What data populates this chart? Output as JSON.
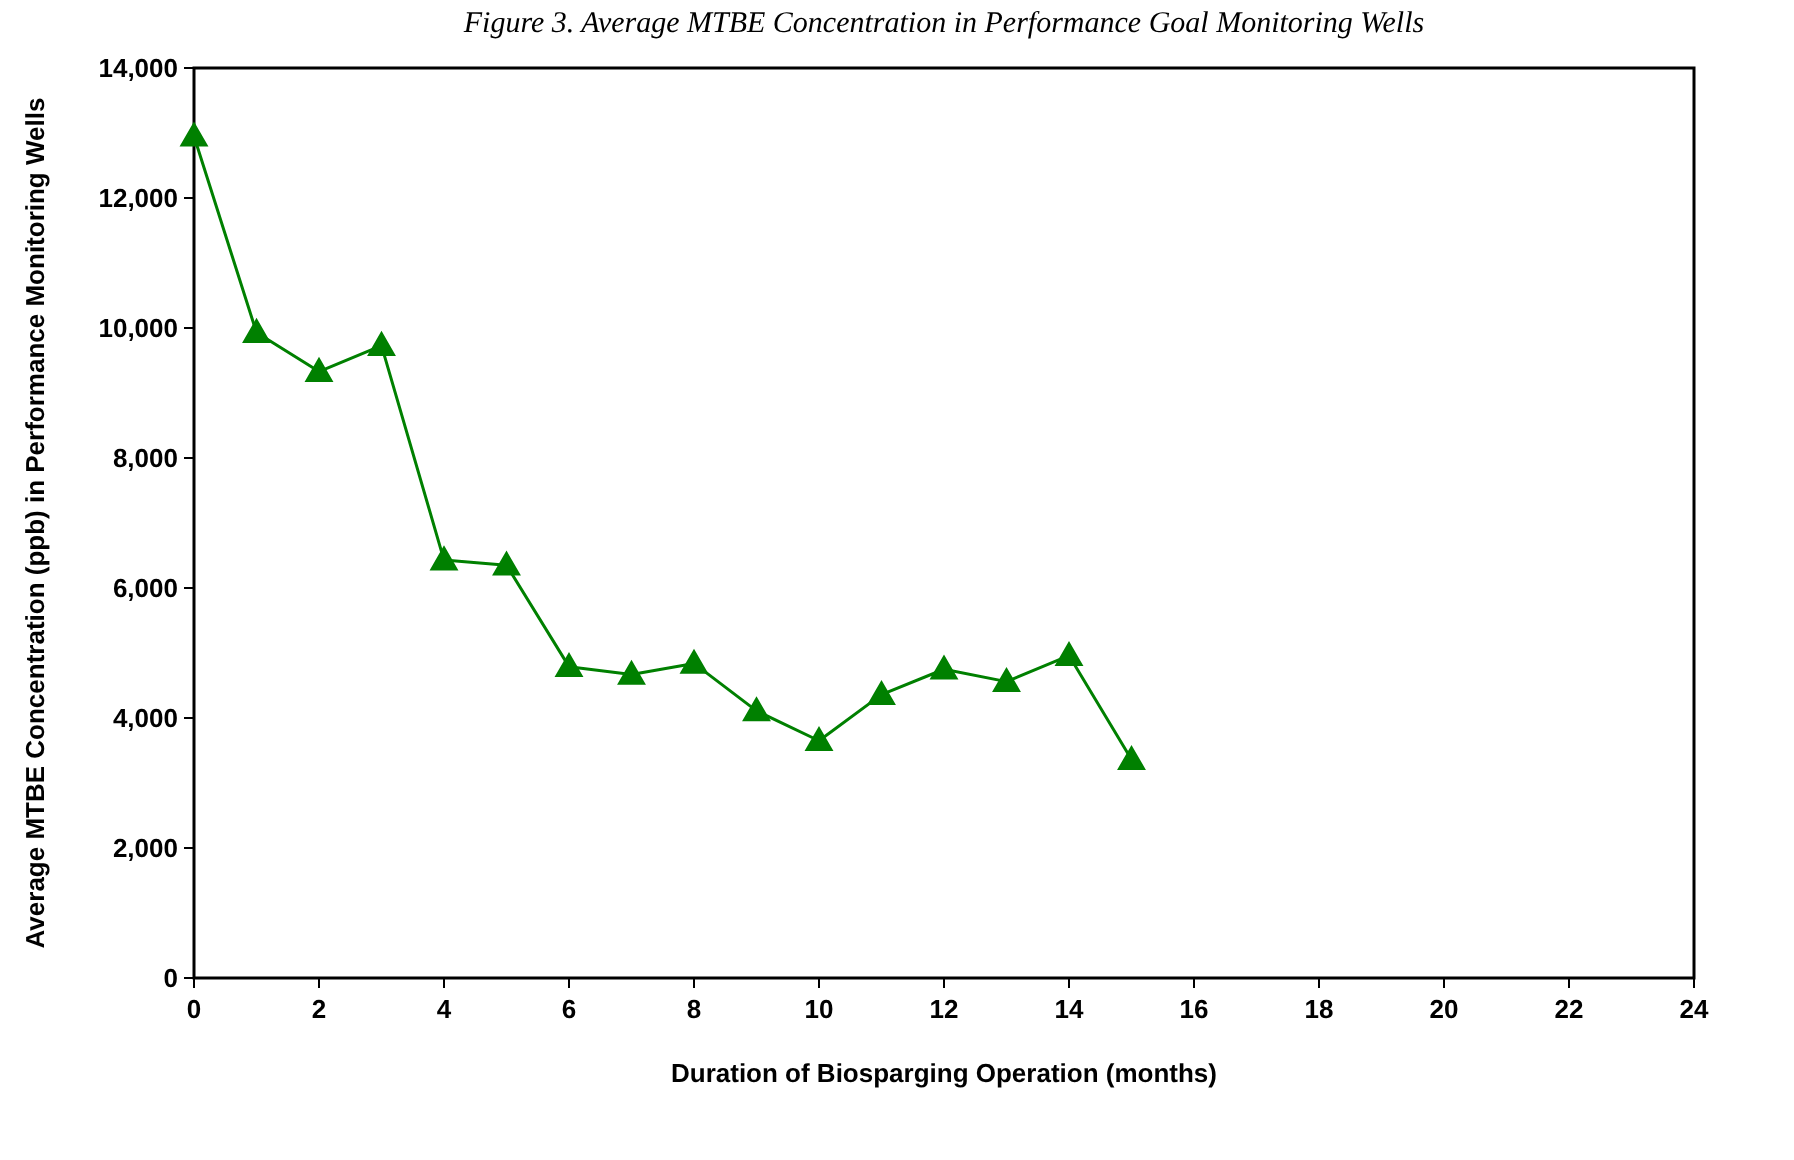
{
  "chart_data": {
    "type": "line",
    "title": "Figure 3. Average MTBE Concentration in Performance Goal Monitoring Wells",
    "xlabel": "Duration of Biosparging Operation (months)",
    "ylabel": "Average MTBE Concentration (ppb) in Performance Monitoring Wells",
    "x": [
      0,
      1,
      2,
      3,
      4,
      5,
      6,
      7,
      8,
      9,
      10,
      11,
      12,
      13,
      14,
      15
    ],
    "series": [
      {
        "color": "#008000",
        "values": [
          12950,
          9930,
          9330,
          9730,
          6430,
          6350,
          4790,
          4670,
          4840,
          4110,
          3650,
          4360,
          4750,
          4560,
          4960,
          3360
        ]
      }
    ],
    "xlim": [
      0,
      24
    ],
    "xticks": [
      0,
      2,
      4,
      6,
      8,
      10,
      12,
      14,
      16,
      18,
      20,
      22,
      24
    ],
    "ylim": [
      0,
      14000
    ],
    "yticks": [
      {
        "value": 0,
        "label": "0"
      },
      {
        "value": 2000,
        "label": "2,000"
      },
      {
        "value": 4000,
        "label": "4,000"
      },
      {
        "value": 6000,
        "label": "6,000"
      },
      {
        "value": 8000,
        "label": "8,000"
      },
      {
        "value": 10000,
        "label": "10,000"
      },
      {
        "value": 12000,
        "label": "12,000"
      },
      {
        "value": 14000,
        "label": "14,000"
      }
    ],
    "grid": false,
    "marker": "triangle",
    "line_style": "solid"
  }
}
